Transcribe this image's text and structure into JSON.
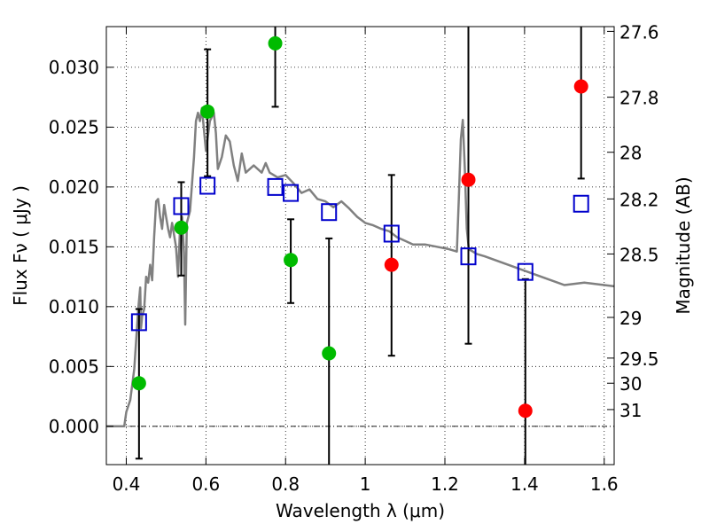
{
  "chart_data": {
    "type": "scatter",
    "title": "",
    "xlabel": "Wavelength  λ (μm)",
    "ylabel": "Flux  Fν  ( μJy )",
    "ylabel_right": "Magnitude (AB)",
    "xlim": [
      0.35,
      1.625
    ],
    "ylim": [
      -0.0032,
      0.0334
    ],
    "x_ticks": [
      0.4,
      0.6,
      0.8,
      1.0,
      1.2,
      1.4,
      1.6
    ],
    "x_tick_labels": [
      "0.4",
      "0.6",
      "0.8",
      "1",
      "1.2",
      "1.4",
      "1.6"
    ],
    "y_ticks": [
      0.0,
      0.005,
      0.01,
      0.015,
      0.02,
      0.025,
      0.03
    ],
    "y_tick_labels": [
      "0.000",
      "0.005",
      "0.010",
      "0.015",
      "0.020",
      "0.025",
      "0.030"
    ],
    "right_axis_ticks": [
      {
        "label": "27.6",
        "flux": 0.033
      },
      {
        "label": "27.8",
        "flux": 0.0275
      },
      {
        "label": "28",
        "flux": 0.0229
      },
      {
        "label": "28.2",
        "flux": 0.019
      },
      {
        "label": "28.5",
        "flux": 0.0144
      },
      {
        "label": "29",
        "flux": 0.0091
      },
      {
        "label": "29.5",
        "flux": 0.0057
      },
      {
        "label": "30",
        "flux": 0.0036
      },
      {
        "label": "31",
        "flux": 0.0014
      }
    ],
    "grid": true,
    "colors": {
      "model": "#808080",
      "green": "#00bb00",
      "red": "#ff0000",
      "square": "#0000cc",
      "errorbar": "#000000"
    },
    "series": [
      {
        "name": "model_spectrum",
        "style": "line",
        "points": [
          [
            0.35,
            0.0
          ],
          [
            0.395,
            0.0
          ],
          [
            0.4,
            0.0012
          ],
          [
            0.41,
            0.0022
          ],
          [
            0.42,
            0.0048
          ],
          [
            0.43,
            0.0098
          ],
          [
            0.435,
            0.0116
          ],
          [
            0.437,
            0.0082
          ],
          [
            0.44,
            0.0092
          ],
          [
            0.445,
            0.0098
          ],
          [
            0.45,
            0.0125
          ],
          [
            0.455,
            0.012
          ],
          [
            0.46,
            0.0135
          ],
          [
            0.465,
            0.0122
          ],
          [
            0.47,
            0.0158
          ],
          [
            0.475,
            0.0188
          ],
          [
            0.48,
            0.019
          ],
          [
            0.485,
            0.0175
          ],
          [
            0.49,
            0.0165
          ],
          [
            0.495,
            0.0185
          ],
          [
            0.5,
            0.0175
          ],
          [
            0.505,
            0.0165
          ],
          [
            0.51,
            0.0158
          ],
          [
            0.515,
            0.017
          ],
          [
            0.52,
            0.016
          ],
          [
            0.525,
            0.015
          ],
          [
            0.53,
            0.0125
          ],
          [
            0.535,
            0.0165
          ],
          [
            0.54,
            0.0175
          ],
          [
            0.545,
            0.0145
          ],
          [
            0.548,
            0.0085
          ],
          [
            0.552,
            0.017
          ],
          [
            0.56,
            0.018
          ],
          [
            0.57,
            0.0225
          ],
          [
            0.575,
            0.0255
          ],
          [
            0.58,
            0.0262
          ],
          [
            0.585,
            0.0255
          ],
          [
            0.59,
            0.0266
          ],
          [
            0.595,
            0.0248
          ],
          [
            0.6,
            0.023
          ],
          [
            0.61,
            0.0255
          ],
          [
            0.62,
            0.0262
          ],
          [
            0.625,
            0.0245
          ],
          [
            0.63,
            0.0215
          ],
          [
            0.64,
            0.0225
          ],
          [
            0.65,
            0.0243
          ],
          [
            0.66,
            0.0238
          ],
          [
            0.67,
            0.0218
          ],
          [
            0.68,
            0.0205
          ],
          [
            0.69,
            0.0228
          ],
          [
            0.7,
            0.0212
          ],
          [
            0.72,
            0.0218
          ],
          [
            0.74,
            0.0212
          ],
          [
            0.75,
            0.022
          ],
          [
            0.76,
            0.0212
          ],
          [
            0.78,
            0.0208
          ],
          [
            0.8,
            0.021
          ],
          [
            0.82,
            0.0203
          ],
          [
            0.84,
            0.0195
          ],
          [
            0.86,
            0.0198
          ],
          [
            0.88,
            0.019
          ],
          [
            0.9,
            0.0188
          ],
          [
            0.92,
            0.0183
          ],
          [
            0.94,
            0.0188
          ],
          [
            0.96,
            0.0182
          ],
          [
            0.98,
            0.0175
          ],
          [
            1.0,
            0.017
          ],
          [
            1.02,
            0.0168
          ],
          [
            1.04,
            0.0165
          ],
          [
            1.06,
            0.0163
          ],
          [
            1.08,
            0.0158
          ],
          [
            1.1,
            0.0155
          ],
          [
            1.12,
            0.0152
          ],
          [
            1.15,
            0.0152
          ],
          [
            1.18,
            0.015
          ],
          [
            1.21,
            0.0148
          ],
          [
            1.23,
            0.0146
          ],
          [
            1.235,
            0.019
          ],
          [
            1.24,
            0.024
          ],
          [
            1.245,
            0.0256
          ],
          [
            1.25,
            0.0215
          ],
          [
            1.255,
            0.0165
          ],
          [
            1.26,
            0.0148
          ],
          [
            1.28,
            0.0144
          ],
          [
            1.3,
            0.0142
          ],
          [
            1.35,
            0.0136
          ],
          [
            1.4,
            0.013
          ],
          [
            1.45,
            0.0124
          ],
          [
            1.5,
            0.0118
          ],
          [
            1.55,
            0.012
          ],
          [
            1.6,
            0.0118
          ],
          [
            1.625,
            0.0117
          ]
        ]
      },
      {
        "name": "green_points",
        "style": "circle",
        "color": "green",
        "points": [
          {
            "x": 0.432,
            "y": 0.0036
          },
          {
            "x": 0.538,
            "y": 0.0166
          },
          {
            "x": 0.604,
            "y": 0.0263
          },
          {
            "x": 0.774,
            "y": 0.032
          },
          {
            "x": 0.813,
            "y": 0.0139
          },
          {
            "x": 0.909,
            "y": 0.0061
          }
        ]
      },
      {
        "name": "red_points",
        "style": "circle",
        "color": "red",
        "points": [
          {
            "x": 1.066,
            "y": 0.0135
          },
          {
            "x": 1.259,
            "y": 0.0206
          },
          {
            "x": 1.402,
            "y": 0.0013
          },
          {
            "x": 1.542,
            "y": 0.0284
          }
        ]
      },
      {
        "name": "model_photometry",
        "style": "square",
        "color": "square",
        "points": [
          {
            "x": 0.432,
            "y": 0.0087
          },
          {
            "x": 0.538,
            "y": 0.0184
          },
          {
            "x": 0.604,
            "y": 0.0201
          },
          {
            "x": 0.774,
            "y": 0.02
          },
          {
            "x": 0.813,
            "y": 0.0195
          },
          {
            "x": 0.909,
            "y": 0.0179
          },
          {
            "x": 1.066,
            "y": 0.0161
          },
          {
            "x": 1.259,
            "y": 0.0142
          },
          {
            "x": 1.402,
            "y": 0.0129
          },
          {
            "x": 1.542,
            "y": 0.0186
          }
        ]
      },
      {
        "name": "error_bars",
        "style": "errorbar",
        "bars": [
          {
            "x": 0.432,
            "lo": -0.0027,
            "hi": 0.0098
          },
          {
            "x": 0.538,
            "lo": 0.0126,
            "hi": 0.0204
          },
          {
            "x": 0.604,
            "lo": 0.0209,
            "hi": 0.0315
          },
          {
            "x": 0.774,
            "lo": 0.0267,
            "hi": 0.034
          },
          {
            "x": 0.813,
            "lo": 0.0103,
            "hi": 0.0173
          },
          {
            "x": 0.909,
            "lo": -0.004,
            "hi": 0.0157
          },
          {
            "x": 1.066,
            "lo": 0.0059,
            "hi": 0.021
          },
          {
            "x": 1.259,
            "lo": 0.0069,
            "hi": 0.034
          },
          {
            "x": 1.402,
            "lo": -0.004,
            "hi": 0.0123
          },
          {
            "x": 1.542,
            "lo": 0.0207,
            "hi": 0.034
          }
        ]
      }
    ]
  }
}
